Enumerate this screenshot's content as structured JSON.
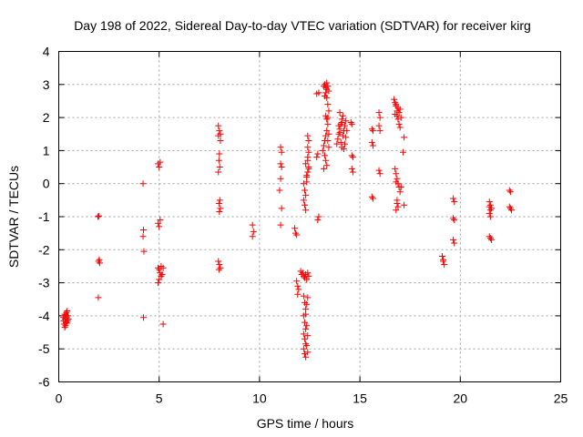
{
  "chart_data": {
    "type": "scatter",
    "title": "Day 198 of 2022, Sidereal Day-to-day VTEC variation (SDTVAR) for receiver kirg",
    "xlabel": "GPS time / hours",
    "ylabel": "SDTVAR / TECUs",
    "xlim": [
      0,
      25
    ],
    "ylim": [
      -6,
      4
    ],
    "xticks": [
      0,
      5,
      10,
      15,
      20,
      25
    ],
    "yticks": [
      4,
      3,
      2,
      1,
      0,
      -1,
      -2,
      -3,
      -4,
      -5,
      -6
    ],
    "grid": true,
    "marker": "+",
    "marker_color": "#ff0000",
    "series": [
      {
        "name": "SDTVAR",
        "points": [
          [
            0.22,
            -4.05
          ],
          [
            0.24,
            -4.15
          ],
          [
            0.26,
            -4.25
          ],
          [
            0.28,
            -4.0
          ],
          [
            0.3,
            -3.95
          ],
          [
            0.32,
            -4.1
          ],
          [
            0.34,
            -4.3
          ],
          [
            0.36,
            -4.2
          ],
          [
            0.38,
            -3.9
          ],
          [
            0.4,
            -4.05
          ],
          [
            0.42,
            -3.85
          ],
          [
            0.44,
            -4.15
          ],
          [
            0.46,
            -4.0
          ],
          [
            0.48,
            -4.1
          ],
          [
            0.3,
            -4.35
          ],
          [
            0.36,
            -3.98
          ],
          [
            0.42,
            -4.22
          ],
          [
            1.95,
            -1.0
          ],
          [
            2.0,
            -0.98
          ],
          [
            2.02,
            -2.3
          ],
          [
            2.04,
            -2.4
          ],
          [
            1.98,
            -2.35
          ],
          [
            1.97,
            -3.45
          ],
          [
            4.2,
            0.0
          ],
          [
            4.22,
            -1.4
          ],
          [
            4.2,
            -1.6
          ],
          [
            4.24,
            -2.05
          ],
          [
            4.22,
            -4.05
          ],
          [
            4.95,
            0.6
          ],
          [
            5.0,
            0.5
          ],
          [
            5.05,
            0.65
          ],
          [
            4.95,
            -1.2
          ],
          [
            5.0,
            -1.3
          ],
          [
            5.05,
            -1.1
          ],
          [
            4.95,
            -2.55
          ],
          [
            5.0,
            -2.6
          ],
          [
            5.05,
            -2.7
          ],
          [
            5.1,
            -2.8
          ],
          [
            5.0,
            -2.9
          ],
          [
            4.95,
            -3.0
          ],
          [
            5.1,
            -2.5
          ],
          [
            5.2,
            -2.55
          ],
          [
            5.15,
            -2.75
          ],
          [
            5.2,
            -4.25
          ],
          [
            7.95,
            1.75
          ],
          [
            8.0,
            1.6
          ],
          [
            8.05,
            1.5
          ],
          [
            7.95,
            1.45
          ],
          [
            8.05,
            1.3
          ],
          [
            8.0,
            0.9
          ],
          [
            7.98,
            0.7
          ],
          [
            8.02,
            0.5
          ],
          [
            7.95,
            0.35
          ],
          [
            8.02,
            -0.5
          ],
          [
            7.98,
            -0.6
          ],
          [
            8.05,
            -0.75
          ],
          [
            8.0,
            -0.85
          ],
          [
            7.95,
            -2.35
          ],
          [
            8.0,
            -2.45
          ],
          [
            8.05,
            -2.55
          ],
          [
            7.98,
            -2.6
          ],
          [
            9.65,
            -1.25
          ],
          [
            9.7,
            -1.45
          ],
          [
            9.65,
            -1.6
          ],
          [
            11.05,
            1.1
          ],
          [
            11.1,
            0.95
          ],
          [
            11.05,
            0.6
          ],
          [
            11.1,
            0.5
          ],
          [
            11.05,
            0.15
          ],
          [
            11.0,
            -0.2
          ],
          [
            11.1,
            -0.75
          ],
          [
            11.05,
            -1.25
          ],
          [
            11.75,
            -1.35
          ],
          [
            11.8,
            -1.5
          ],
          [
            11.85,
            -1.55
          ],
          [
            11.85,
            -2.95
          ],
          [
            11.9,
            -3.1
          ],
          [
            11.95,
            -3.2
          ],
          [
            11.9,
            -3.35
          ],
          [
            12.05,
            -2.65
          ],
          [
            12.1,
            -2.75
          ],
          [
            12.15,
            -2.7
          ],
          [
            12.2,
            -2.8
          ],
          [
            12.25,
            -2.85
          ],
          [
            12.3,
            -2.75
          ],
          [
            12.35,
            -2.9
          ],
          [
            12.4,
            -2.7
          ],
          [
            12.45,
            -2.8
          ],
          [
            12.2,
            -3.4
          ],
          [
            12.25,
            -3.6
          ],
          [
            12.3,
            -3.8
          ],
          [
            12.2,
            -4.0
          ],
          [
            12.25,
            -4.2
          ],
          [
            12.3,
            -4.4
          ],
          [
            12.2,
            -4.55
          ],
          [
            12.25,
            -4.7
          ],
          [
            12.3,
            -4.85
          ],
          [
            12.2,
            -5.0
          ],
          [
            12.25,
            -5.15
          ],
          [
            12.3,
            -5.25
          ],
          [
            12.4,
            -5.1
          ],
          [
            12.35,
            -4.9
          ],
          [
            12.4,
            -4.6
          ],
          [
            12.35,
            -4.3
          ],
          [
            12.3,
            -3.95
          ],
          [
            12.35,
            -3.65
          ],
          [
            12.4,
            -3.45
          ],
          [
            12.2,
            0.0
          ],
          [
            12.25,
            -0.2
          ],
          [
            12.3,
            -0.35
          ],
          [
            12.2,
            -0.5
          ],
          [
            12.25,
            -0.65
          ],
          [
            12.3,
            -0.8
          ],
          [
            12.35,
            0.2
          ],
          [
            12.4,
            0.35
          ],
          [
            12.45,
            0.5
          ],
          [
            12.3,
            0.6
          ],
          [
            12.4,
            0.7
          ],
          [
            12.35,
            0.05
          ],
          [
            12.4,
            1.45
          ],
          [
            12.45,
            1.3
          ],
          [
            12.4,
            1.1
          ],
          [
            12.45,
            0.95
          ],
          [
            12.4,
            0.8
          ],
          [
            12.35,
            0.25
          ],
          [
            12.45,
            0.45
          ],
          [
            12.85,
            0.8
          ],
          [
            12.9,
            0.9
          ],
          [
            12.95,
            -1.0
          ],
          [
            12.9,
            -1.1
          ],
          [
            12.95,
            2.75
          ],
          [
            12.85,
            2.72
          ],
          [
            13.15,
            1.0
          ],
          [
            13.2,
            1.15
          ],
          [
            13.25,
            1.3
          ],
          [
            13.3,
            1.45
          ],
          [
            13.35,
            1.6
          ],
          [
            13.25,
            0.85
          ],
          [
            13.3,
            0.7
          ],
          [
            13.35,
            0.55
          ],
          [
            13.2,
            0.45
          ],
          [
            13.2,
            2.95
          ],
          [
            13.25,
            3.0
          ],
          [
            13.3,
            2.9
          ],
          [
            13.35,
            2.85
          ],
          [
            13.4,
            2.95
          ],
          [
            13.45,
            2.8
          ],
          [
            13.35,
            2.6
          ],
          [
            13.4,
            2.4
          ],
          [
            13.45,
            2.2
          ],
          [
            13.3,
            2.05
          ],
          [
            13.35,
            1.95
          ],
          [
            13.4,
            1.8
          ],
          [
            13.45,
            1.5
          ],
          [
            13.4,
            1.3
          ],
          [
            13.45,
            1.1
          ],
          [
            13.4,
            2.0
          ],
          [
            13.3,
            2.75
          ],
          [
            13.25,
            2.65
          ],
          [
            13.35,
            3.05
          ],
          [
            13.85,
            1.2
          ],
          [
            13.9,
            1.35
          ],
          [
            13.95,
            1.5
          ],
          [
            14.0,
            1.65
          ],
          [
            14.05,
            1.8
          ],
          [
            14.1,
            1.95
          ],
          [
            14.15,
            2.05
          ],
          [
            14.0,
            2.15
          ],
          [
            13.95,
            1.75
          ],
          [
            14.05,
            1.25
          ],
          [
            14.1,
            1.1
          ],
          [
            14.15,
            1.45
          ],
          [
            14.2,
            1.6
          ],
          [
            14.25,
            1.75
          ],
          [
            14.3,
            1.9
          ],
          [
            14.35,
            1.6
          ],
          [
            14.3,
            1.4
          ],
          [
            14.25,
            1.2
          ],
          [
            14.2,
            1.05
          ],
          [
            14.1,
            1.85
          ],
          [
            14.0,
            1.55
          ],
          [
            14.55,
            1.85
          ],
          [
            14.6,
            1.8
          ],
          [
            14.6,
            0.85
          ],
          [
            14.65,
            0.8
          ],
          [
            14.6,
            0.45
          ],
          [
            14.65,
            0.35
          ],
          [
            15.6,
            1.65
          ],
          [
            15.65,
            1.6
          ],
          [
            15.6,
            1.25
          ],
          [
            15.65,
            1.15
          ],
          [
            15.6,
            -0.4
          ],
          [
            15.65,
            -0.45
          ],
          [
            15.95,
            2.15
          ],
          [
            16.0,
            2.0
          ],
          [
            15.95,
            1.75
          ],
          [
            16.0,
            1.6
          ],
          [
            15.95,
            0.4
          ],
          [
            16.0,
            0.3
          ],
          [
            16.7,
            2.55
          ],
          [
            16.75,
            2.45
          ],
          [
            16.8,
            2.35
          ],
          [
            16.85,
            2.2
          ],
          [
            16.9,
            2.3
          ],
          [
            16.95,
            2.15
          ],
          [
            17.0,
            2.25
          ],
          [
            16.85,
            2.05
          ],
          [
            16.9,
            1.95
          ],
          [
            16.95,
            1.8
          ],
          [
            17.0,
            1.7
          ],
          [
            16.8,
            2.4
          ],
          [
            16.75,
            2.1
          ],
          [
            17.05,
            2.0
          ],
          [
            16.75,
            0.45
          ],
          [
            16.8,
            0.3
          ],
          [
            16.85,
            0.15
          ],
          [
            16.9,
            0.0
          ],
          [
            16.95,
            -0.1
          ],
          [
            17.0,
            -0.25
          ],
          [
            17.05,
            -0.1
          ],
          [
            16.8,
            0.05
          ],
          [
            16.85,
            -0.6
          ],
          [
            16.9,
            -0.7
          ],
          [
            16.8,
            -0.8
          ],
          [
            16.85,
            -0.5
          ],
          [
            17.2,
            1.4
          ],
          [
            17.15,
            0.95
          ],
          [
            17.2,
            -0.65
          ],
          [
            19.1,
            -2.2
          ],
          [
            19.15,
            -2.3
          ],
          [
            19.2,
            -2.45
          ],
          [
            19.15,
            -2.35
          ],
          [
            19.65,
            -0.45
          ],
          [
            19.7,
            -0.55
          ],
          [
            19.65,
            -1.05
          ],
          [
            19.7,
            -1.1
          ],
          [
            19.65,
            -1.7
          ],
          [
            19.7,
            -1.8
          ],
          [
            21.45,
            -0.55
          ],
          [
            21.5,
            -0.65
          ],
          [
            21.45,
            -0.7
          ],
          [
            21.55,
            -0.75
          ],
          [
            21.5,
            -0.8
          ],
          [
            21.45,
            -0.9
          ],
          [
            21.5,
            -1.0
          ],
          [
            21.45,
            -1.6
          ],
          [
            21.5,
            -1.65
          ],
          [
            21.55,
            -1.7
          ],
          [
            22.45,
            -0.2
          ],
          [
            22.5,
            -0.25
          ],
          [
            22.45,
            -0.7
          ],
          [
            22.5,
            -0.75
          ],
          [
            22.55,
            -0.8
          ]
        ]
      }
    ]
  }
}
